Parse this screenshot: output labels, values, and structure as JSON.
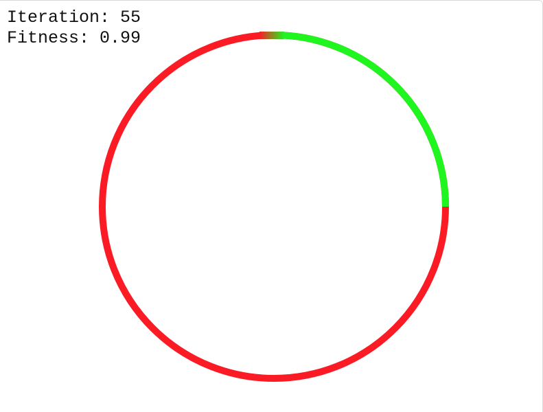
{
  "stats": {
    "iteration_label": "Iteration: 55",
    "fitness_label": "Fitness: 0.99",
    "iteration": 55,
    "fitness": 0.99
  },
  "ring": {
    "completed_fraction": 0.25,
    "completed_color": "#1ff51f",
    "remaining_color": "#fb1b25",
    "transition_color": "#8a5a1c"
  }
}
